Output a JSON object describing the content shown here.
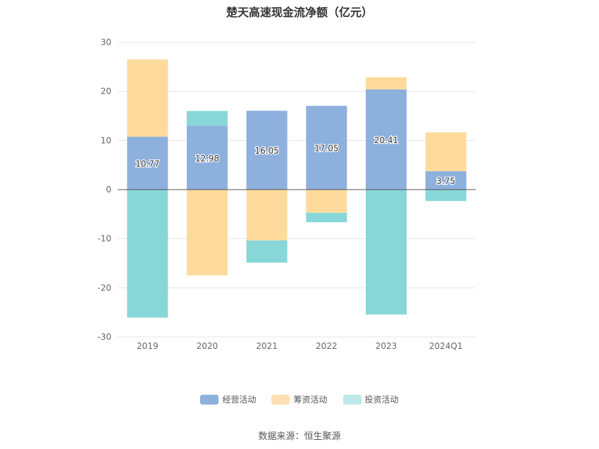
{
  "chart_data": {
    "type": "bar",
    "stacked": true,
    "title": "楚天高速现金流净额（亿元）",
    "categories": [
      "2019",
      "2020",
      "2021",
      "2022",
      "2023",
      "2024Q1"
    ],
    "ylim": [
      -30,
      30
    ],
    "yticks": [
      30,
      20,
      10,
      0,
      -10,
      -20,
      -30
    ],
    "grid": true,
    "legend_position": "bottom",
    "series": [
      {
        "name": "经营活动",
        "color": "#8eb0dd",
        "values": [
          10.77,
          12.98,
          16.05,
          17.05,
          20.41,
          3.75
        ],
        "data_labels": [
          "10.77",
          "12.98",
          "16.05",
          "17.05",
          "20.41",
          "3.75"
        ]
      },
      {
        "name": "筹资活动",
        "color": "#fedb9c",
        "values": [
          15.73,
          -17.45,
          -10.35,
          -4.71,
          2.49,
          7.92
        ]
      },
      {
        "name": "投资活动",
        "color": "#87d7d8",
        "values": [
          -26.07,
          3.04,
          -4.52,
          -1.93,
          -25.43,
          -2.32
        ]
      }
    ],
    "legend_colors": [
      "#8eb0dd",
      "#fedfb2",
      "#bde8e8"
    ]
  },
  "source_text": "数据来源：恒生聚源"
}
